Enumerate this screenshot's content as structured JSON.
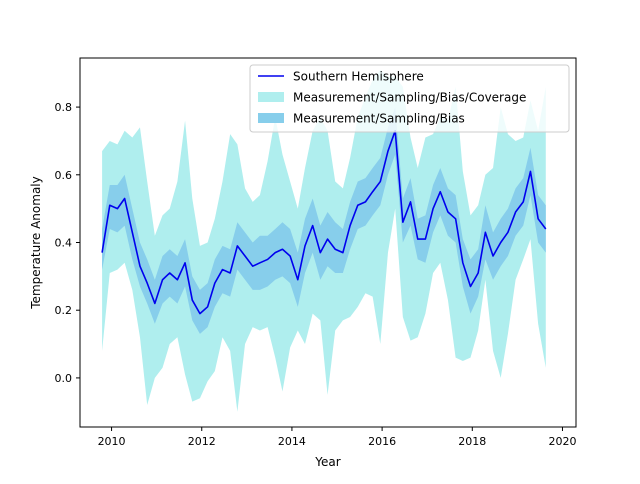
{
  "chart_data": {
    "type": "line",
    "title": "",
    "xlabel": "Year",
    "ylabel": "Temperature Anomaly",
    "xlim": [
      2009.3,
      2020.3
    ],
    "ylim": [
      -0.145,
      0.945
    ],
    "xticks": [
      2010,
      2012,
      2014,
      2016,
      2018,
      2020
    ],
    "xtick_labels": [
      "2010",
      "2012",
      "2014",
      "2016",
      "2018",
      "2020"
    ],
    "yticks": [
      0.0,
      0.2,
      0.4,
      0.6,
      0.8
    ],
    "ytick_labels": [
      "0.0",
      "0.2",
      "0.4",
      "0.6",
      "0.8"
    ],
    "grid": false,
    "legend_position": "top-right",
    "legend": [
      {
        "label": "Southern Hemisphere",
        "kind": "line",
        "color": "#0000ee"
      },
      {
        "label": "Measurement/Sampling/Bias/Coverage",
        "kind": "patch",
        "color": "#afeeee"
      },
      {
        "label": "Measurement/Sampling/Bias",
        "kind": "patch",
        "color": "#87ceeb"
      }
    ],
    "x": [
      2009.79,
      2009.96,
      2010.13,
      2010.29,
      2010.46,
      2010.63,
      2010.79,
      2010.96,
      2011.13,
      2011.29,
      2011.46,
      2011.63,
      2011.79,
      2011.96,
      2012.13,
      2012.29,
      2012.46,
      2012.63,
      2012.79,
      2012.96,
      2013.13,
      2013.29,
      2013.46,
      2013.63,
      2013.79,
      2013.96,
      2014.13,
      2014.29,
      2014.46,
      2014.63,
      2014.79,
      2014.96,
      2015.13,
      2015.29,
      2015.46,
      2015.63,
      2015.79,
      2015.96,
      2016.13,
      2016.29,
      2016.46,
      2016.63,
      2016.79,
      2016.96,
      2017.13,
      2017.29,
      2017.46,
      2017.63,
      2017.79,
      2017.96,
      2018.13,
      2018.29,
      2018.46,
      2018.63,
      2018.79,
      2018.96,
      2019.13,
      2019.29,
      2019.46,
      2019.63
    ],
    "series": [
      {
        "name": "Southern Hemisphere",
        "color": "#0000ee",
        "y": [
          0.37,
          0.51,
          0.5,
          0.53,
          0.43,
          0.33,
          0.28,
          0.22,
          0.29,
          0.31,
          0.29,
          0.34,
          0.23,
          0.19,
          0.21,
          0.28,
          0.32,
          0.31,
          0.39,
          0.36,
          0.33,
          0.34,
          0.35,
          0.37,
          0.38,
          0.36,
          0.29,
          0.39,
          0.45,
          0.37,
          0.41,
          0.38,
          0.37,
          0.45,
          0.51,
          0.52,
          0.55,
          0.58,
          0.67,
          0.73,
          0.46,
          0.52,
          0.41,
          0.41,
          0.5,
          0.55,
          0.49,
          0.47,
          0.34,
          0.27,
          0.31,
          0.43,
          0.36,
          0.4,
          0.43,
          0.49,
          0.52,
          0.61,
          0.47,
          0.44
        ]
      }
    ],
    "bands": [
      {
        "name": "Measurement/Sampling/Bias/Coverage",
        "color": "#afeeee",
        "lower": [
          0.08,
          0.31,
          0.32,
          0.34,
          0.26,
          0.12,
          -0.08,
          0.0,
          0.03,
          0.1,
          0.12,
          0.01,
          -0.07,
          -0.06,
          -0.01,
          0.02,
          0.12,
          0.08,
          -0.1,
          0.1,
          0.15,
          0.14,
          0.15,
          0.06,
          -0.04,
          0.09,
          0.14,
          0.1,
          0.19,
          0.17,
          -0.05,
          0.14,
          0.17,
          0.18,
          0.21,
          0.25,
          0.24,
          0.1,
          0.37,
          0.5,
          0.18,
          0.11,
          0.12,
          0.19,
          0.31,
          0.34,
          0.23,
          0.06,
          0.05,
          0.06,
          0.14,
          0.29,
          0.08,
          0.0,
          0.13,
          0.29,
          0.35,
          0.41,
          0.16,
          0.03
        ],
        "upper": [
          0.67,
          0.7,
          0.69,
          0.73,
          0.71,
          0.74,
          0.58,
          0.42,
          0.48,
          0.5,
          0.58,
          0.76,
          0.53,
          0.39,
          0.4,
          0.47,
          0.58,
          0.72,
          0.69,
          0.56,
          0.52,
          0.54,
          0.64,
          0.77,
          0.66,
          0.58,
          0.5,
          0.62,
          0.73,
          0.77,
          0.73,
          0.58,
          0.56,
          0.65,
          0.77,
          0.83,
          0.88,
          0.91,
          0.89,
          0.89,
          0.86,
          0.71,
          0.62,
          0.71,
          0.72,
          0.77,
          0.76,
          0.86,
          0.61,
          0.48,
          0.51,
          0.6,
          0.62,
          0.8,
          0.72,
          0.7,
          0.71,
          0.82,
          0.73,
          0.86
        ]
      },
      {
        "name": "Measurement/Sampling/Bias",
        "color": "#87ceeb",
        "lower": [
          0.32,
          0.44,
          0.43,
          0.45,
          0.35,
          0.27,
          0.22,
          0.16,
          0.22,
          0.24,
          0.22,
          0.27,
          0.17,
          0.13,
          0.15,
          0.21,
          0.25,
          0.24,
          0.32,
          0.29,
          0.26,
          0.26,
          0.27,
          0.29,
          0.3,
          0.28,
          0.21,
          0.31,
          0.37,
          0.29,
          0.33,
          0.31,
          0.31,
          0.38,
          0.44,
          0.45,
          0.48,
          0.51,
          0.6,
          0.66,
          0.4,
          0.45,
          0.35,
          0.34,
          0.43,
          0.48,
          0.42,
          0.4,
          0.27,
          0.19,
          0.24,
          0.35,
          0.29,
          0.33,
          0.36,
          0.42,
          0.45,
          0.54,
          0.4,
          0.37
        ],
        "upper": [
          0.44,
          0.57,
          0.57,
          0.6,
          0.5,
          0.4,
          0.35,
          0.29,
          0.36,
          0.38,
          0.36,
          0.41,
          0.3,
          0.26,
          0.28,
          0.35,
          0.39,
          0.38,
          0.46,
          0.43,
          0.4,
          0.42,
          0.42,
          0.44,
          0.46,
          0.44,
          0.37,
          0.47,
          0.53,
          0.45,
          0.49,
          0.46,
          0.44,
          0.52,
          0.58,
          0.59,
          0.62,
          0.65,
          0.74,
          0.8,
          0.53,
          0.59,
          0.47,
          0.48,
          0.57,
          0.62,
          0.56,
          0.54,
          0.41,
          0.35,
          0.38,
          0.51,
          0.43,
          0.47,
          0.5,
          0.56,
          0.59,
          0.68,
          0.54,
          0.51
        ]
      }
    ]
  }
}
